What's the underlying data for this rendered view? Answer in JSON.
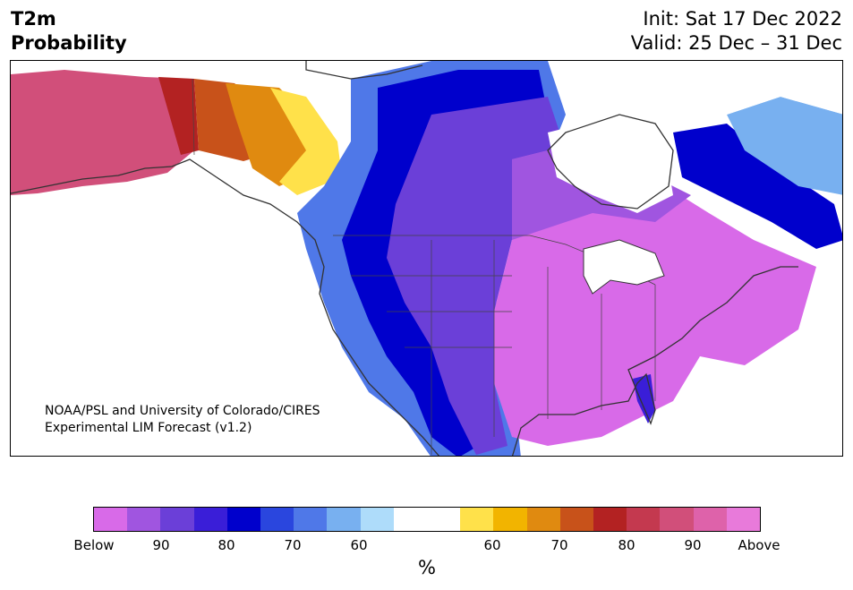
{
  "title": {
    "line1": "T2m",
    "line2": "Probability"
  },
  "dates": {
    "init": "Init: Sat 17 Dec 2022",
    "valid": "Valid: 25 Dec – 31 Dec"
  },
  "credit": {
    "line1": "NOAA/PSL and University of Colorado/CIRES",
    "line2": "Experimental LIM Forecast (v1.2)"
  },
  "colorbar": {
    "unit": "%",
    "colors": [
      "#d86ae8",
      "#a055e0",
      "#6b3fd8",
      "#3a1ed8",
      "#0000cc",
      "#2a46de",
      "#4f78e8",
      "#78b0f0",
      "#aedcfa",
      "#ffffff",
      "#ffffff",
      "#ffe14a",
      "#f2b400",
      "#e08a10",
      "#c8521a",
      "#b32222",
      "#c4394f",
      "#d14f7a",
      "#de62aa",
      "#e87ada"
    ],
    "tick_labels": [
      "Below",
      "90",
      "80",
      "70",
      "60",
      "60",
      "70",
      "80",
      "90",
      "Above"
    ]
  },
  "legend_categories": {
    "below": "Below",
    "above": "Above"
  }
}
